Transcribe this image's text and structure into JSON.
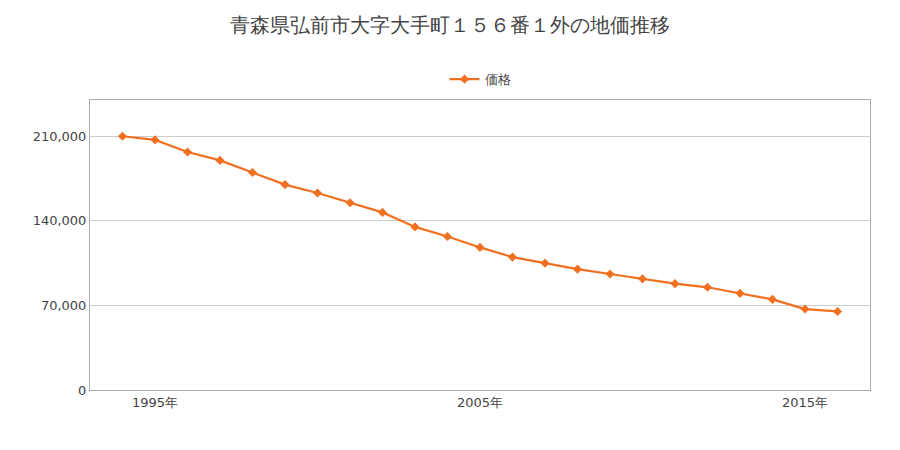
{
  "chart_data": {
    "type": "line",
    "title": "青森県弘前市大字大手町１５６番１外の地価推移",
    "x": [
      1994,
      1995,
      1996,
      1997,
      1998,
      1999,
      2000,
      2001,
      2002,
      2003,
      2004,
      2005,
      2006,
      2007,
      2008,
      2009,
      2010,
      2011,
      2012,
      2013,
      2014,
      2015,
      2016
    ],
    "series": [
      {
        "name": "価格",
        "color": "#f07020",
        "marker": "diamond",
        "values": [
          210000,
          207000,
          197000,
          190000,
          180000,
          170000,
          163000,
          155000,
          147000,
          135000,
          127000,
          118000,
          110000,
          105000,
          100000,
          96000,
          92000,
          88000,
          85000,
          80000,
          75000,
          67000,
          65000
        ]
      }
    ],
    "xlim": [
      1993,
      2017
    ],
    "xticks": [
      {
        "value": 1995,
        "label": "1995年"
      },
      {
        "value": 2005,
        "label": "2005年"
      },
      {
        "value": 2015,
        "label": "2015年"
      }
    ],
    "ylim": [
      0,
      240000
    ],
    "yticks": [
      0,
      {
        "value": 70000,
        "label": "70,000"
      },
      {
        "value": 140000,
        "label": "140,000"
      },
      {
        "value": 210000,
        "label": "210,000"
      }
    ],
    "grid": true,
    "legend": "top"
  }
}
